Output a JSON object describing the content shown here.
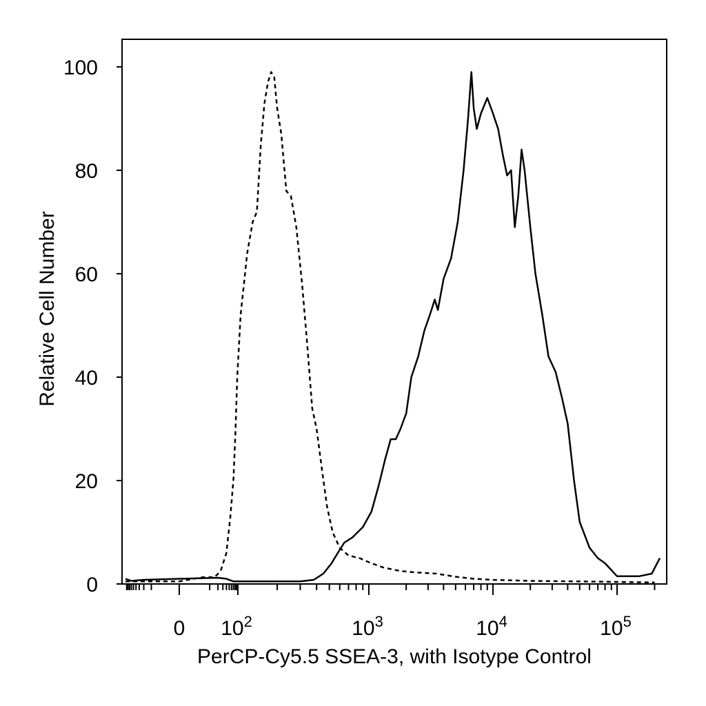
{
  "chart_data": {
    "type": "line",
    "title": "",
    "xlabel": "PerCP-Cy5.5 SSEA-3, with Isotype Control",
    "ylabel": "Relative Cell Number",
    "x_scale": "logicle",
    "xlim": [
      -100,
      250000
    ],
    "ylim": [
      0,
      100
    ],
    "y_ticks": [
      "0",
      "20",
      "40",
      "60",
      "80",
      "100"
    ],
    "x_tick_labels": [
      {
        "base": "0",
        "exp": ""
      },
      {
        "base": "10",
        "exp": "2"
      },
      {
        "base": "10",
        "exp": "3"
      },
      {
        "base": "10",
        "exp": "4"
      },
      {
        "base": "10",
        "exp": "5"
      }
    ],
    "x_tick_values": [
      0,
      100,
      1000,
      10000,
      100000
    ],
    "grid": false,
    "legend": "none",
    "series": [
      {
        "style": "dashed",
        "points": [
          [
            -100,
            0.5
          ],
          [
            -30,
            0.5
          ],
          [
            0,
            0.5
          ],
          [
            5,
            1.3
          ],
          [
            15,
            1.3
          ],
          [
            25,
            2.5
          ],
          [
            40,
            6
          ],
          [
            55,
            13
          ],
          [
            70,
            20
          ],
          [
            82,
            29
          ],
          [
            95,
            40
          ],
          [
            105,
            52
          ],
          [
            118,
            64
          ],
          [
            130,
            70
          ],
          [
            140,
            72
          ],
          [
            150,
            85
          ],
          [
            160,
            93
          ],
          [
            170,
            97
          ],
          [
            180,
            99
          ],
          [
            190,
            98
          ],
          [
            200,
            92
          ],
          [
            215,
            87
          ],
          [
            235,
            76
          ],
          [
            255,
            75
          ],
          [
            280,
            69
          ],
          [
            310,
            58
          ],
          [
            340,
            46
          ],
          [
            370,
            34
          ],
          [
            400,
            30
          ],
          [
            440,
            22
          ],
          [
            480,
            15
          ],
          [
            530,
            10
          ],
          [
            600,
            7
          ],
          [
            700,
            5.5
          ],
          [
            850,
            5
          ],
          [
            1000,
            4.2
          ],
          [
            1300,
            3.2
          ],
          [
            1800,
            2.5
          ],
          [
            2500,
            2.2
          ],
          [
            3500,
            2
          ],
          [
            5000,
            1.4
          ],
          [
            7000,
            1
          ],
          [
            10000,
            0.8
          ],
          [
            20000,
            0.6
          ],
          [
            50000,
            0.5
          ],
          [
            100000,
            0.4
          ],
          [
            200000,
            0.3
          ]
        ]
      },
      {
        "style": "solid",
        "points": [
          [
            -100,
            1.0
          ],
          [
            -60,
            0.6
          ],
          [
            -20,
            0.8
          ],
          [
            0,
            1.0
          ],
          [
            20,
            1.2
          ],
          [
            40,
            1.0
          ],
          [
            70,
            0.5
          ],
          [
            150,
            0.5
          ],
          [
            300,
            0.5
          ],
          [
            380,
            0.8
          ],
          [
            450,
            2
          ],
          [
            520,
            4
          ],
          [
            580,
            6
          ],
          [
            650,
            8
          ],
          [
            750,
            9
          ],
          [
            900,
            11
          ],
          [
            1050,
            14
          ],
          [
            1200,
            19
          ],
          [
            1350,
            24
          ],
          [
            1500,
            28
          ],
          [
            1650,
            28
          ],
          [
            1800,
            30
          ],
          [
            2000,
            33
          ],
          [
            2200,
            40
          ],
          [
            2500,
            44
          ],
          [
            2800,
            49
          ],
          [
            3100,
            52
          ],
          [
            3400,
            55
          ],
          [
            3600,
            53
          ],
          [
            4000,
            59
          ],
          [
            4600,
            63
          ],
          [
            5200,
            70
          ],
          [
            5800,
            80
          ],
          [
            6300,
            90
          ],
          [
            6700,
            99
          ],
          [
            7000,
            92
          ],
          [
            7400,
            88
          ],
          [
            8000,
            91
          ],
          [
            9000,
            94
          ],
          [
            10000,
            91
          ],
          [
            11000,
            88
          ],
          [
            12000,
            83
          ],
          [
            13000,
            79
          ],
          [
            14000,
            80
          ],
          [
            15000,
            69
          ],
          [
            16000,
            75
          ],
          [
            17000,
            84
          ],
          [
            18000,
            80
          ],
          [
            20000,
            69
          ],
          [
            22000,
            60
          ],
          [
            25000,
            52
          ],
          [
            28000,
            44
          ],
          [
            32000,
            41
          ],
          [
            36000,
            36
          ],
          [
            40000,
            31
          ],
          [
            45000,
            20
          ],
          [
            50000,
            12
          ],
          [
            60000,
            7
          ],
          [
            70000,
            5
          ],
          [
            80000,
            4
          ],
          [
            100000,
            1.5
          ],
          [
            150000,
            1.5
          ],
          [
            190000,
            2
          ],
          [
            220000,
            5
          ]
        ]
      }
    ]
  }
}
